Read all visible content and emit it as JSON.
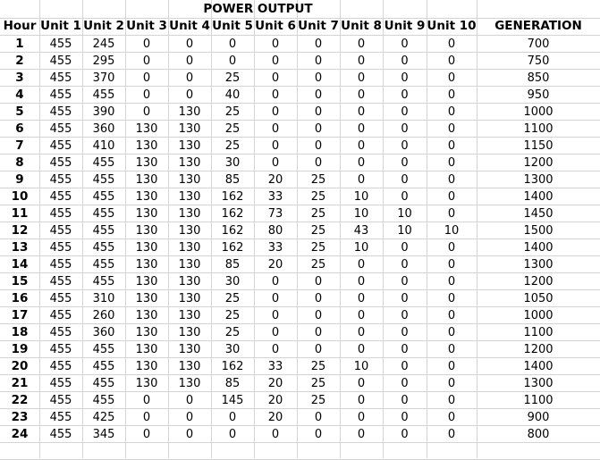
{
  "sheet": {
    "title": "POWER OUTPUT",
    "headers": [
      "Hour",
      "Unit 1",
      "Unit 2",
      "Unit 3",
      "Unit 4",
      "Unit 5",
      "Unit 6",
      "Unit 7",
      "Unit 8",
      "Unit 9",
      "Unit 10",
      "GENERATION"
    ],
    "rows": [
      [
        "1",
        "455",
        "245",
        "0",
        "0",
        "0",
        "0",
        "0",
        "0",
        "0",
        "0",
        "700"
      ],
      [
        "2",
        "455",
        "295",
        "0",
        "0",
        "0",
        "0",
        "0",
        "0",
        "0",
        "0",
        "750"
      ],
      [
        "3",
        "455",
        "370",
        "0",
        "0",
        "25",
        "0",
        "0",
        "0",
        "0",
        "0",
        "850"
      ],
      [
        "4",
        "455",
        "455",
        "0",
        "0",
        "40",
        "0",
        "0",
        "0",
        "0",
        "0",
        "950"
      ],
      [
        "5",
        "455",
        "390",
        "0",
        "130",
        "25",
        "0",
        "0",
        "0",
        "0",
        "0",
        "1000"
      ],
      [
        "6",
        "455",
        "360",
        "130",
        "130",
        "25",
        "0",
        "0",
        "0",
        "0",
        "0",
        "1100"
      ],
      [
        "7",
        "455",
        "410",
        "130",
        "130",
        "25",
        "0",
        "0",
        "0",
        "0",
        "0",
        "1150"
      ],
      [
        "8",
        "455",
        "455",
        "130",
        "130",
        "30",
        "0",
        "0",
        "0",
        "0",
        "0",
        "1200"
      ],
      [
        "9",
        "455",
        "455",
        "130",
        "130",
        "85",
        "20",
        "25",
        "0",
        "0",
        "0",
        "1300"
      ],
      [
        "10",
        "455",
        "455",
        "130",
        "130",
        "162",
        "33",
        "25",
        "10",
        "0",
        "0",
        "1400"
      ],
      [
        "11",
        "455",
        "455",
        "130",
        "130",
        "162",
        "73",
        "25",
        "10",
        "10",
        "0",
        "1450"
      ],
      [
        "12",
        "455",
        "455",
        "130",
        "130",
        "162",
        "80",
        "25",
        "43",
        "10",
        "10",
        "1500"
      ],
      [
        "13",
        "455",
        "455",
        "130",
        "130",
        "162",
        "33",
        "25",
        "10",
        "0",
        "0",
        "1400"
      ],
      [
        "14",
        "455",
        "455",
        "130",
        "130",
        "85",
        "20",
        "25",
        "0",
        "0",
        "0",
        "1300"
      ],
      [
        "15",
        "455",
        "455",
        "130",
        "130",
        "30",
        "0",
        "0",
        "0",
        "0",
        "0",
        "1200"
      ],
      [
        "16",
        "455",
        "310",
        "130",
        "130",
        "25",
        "0",
        "0",
        "0",
        "0",
        "0",
        "1050"
      ],
      [
        "17",
        "455",
        "260",
        "130",
        "130",
        "25",
        "0",
        "0",
        "0",
        "0",
        "0",
        "1000"
      ],
      [
        "18",
        "455",
        "360",
        "130",
        "130",
        "25",
        "0",
        "0",
        "0",
        "0",
        "0",
        "1100"
      ],
      [
        "19",
        "455",
        "455",
        "130",
        "130",
        "30",
        "0",
        "0",
        "0",
        "0",
        "0",
        "1200"
      ],
      [
        "20",
        "455",
        "455",
        "130",
        "130",
        "162",
        "33",
        "25",
        "10",
        "0",
        "0",
        "1400"
      ],
      [
        "21",
        "455",
        "455",
        "130",
        "130",
        "85",
        "20",
        "25",
        "0",
        "0",
        "0",
        "1300"
      ],
      [
        "22",
        "455",
        "455",
        "0",
        "0",
        "145",
        "20",
        "25",
        "0",
        "0",
        "0",
        "1100"
      ],
      [
        "23",
        "455",
        "425",
        "0",
        "0",
        "0",
        "20",
        "0",
        "0",
        "0",
        "0",
        "900"
      ],
      [
        "24",
        "455",
        "345",
        "0",
        "0",
        "0",
        "0",
        "0",
        "0",
        "0",
        "0",
        "800"
      ]
    ]
  }
}
